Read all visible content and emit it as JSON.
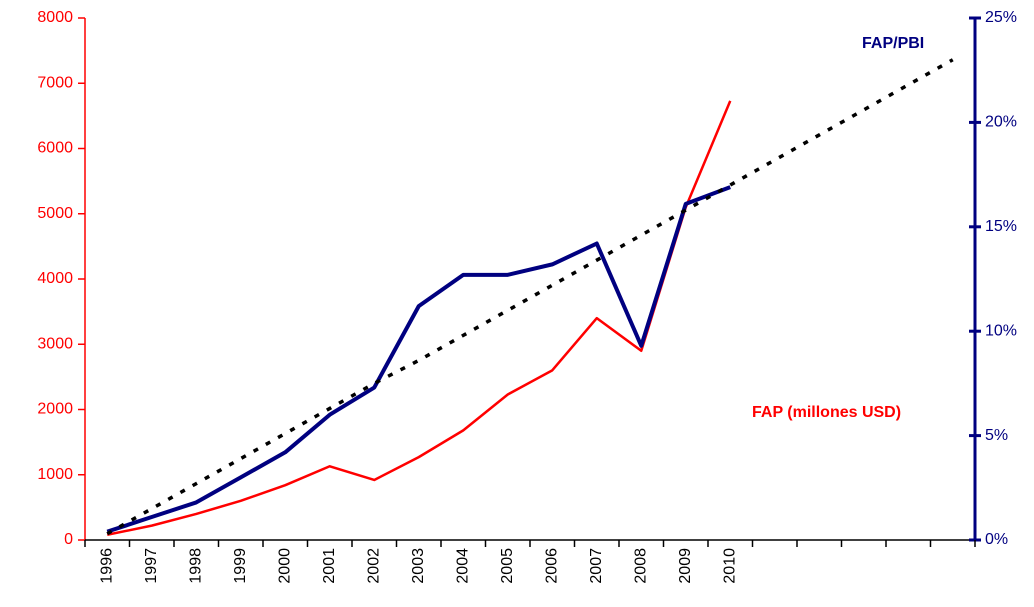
{
  "chart_data": {
    "type": "line",
    "categories": [
      "1996",
      "1997",
      "1998",
      "1999",
      "2000",
      "2001",
      "2002",
      "2003",
      "2004",
      "2005",
      "2006",
      "2007",
      "2008",
      "2009",
      "2010",
      null,
      null,
      null,
      null,
      null
    ],
    "series": [
      {
        "name": "FAP (millones  USD)",
        "color": "#ff0000",
        "axis": "y",
        "values": [
          80,
          220,
          400,
          600,
          840,
          1130,
          920,
          1270,
          1680,
          2230,
          2600,
          3400,
          2900,
          5100,
          6730,
          null,
          null,
          null,
          null,
          null
        ]
      },
      {
        "name": "FAP/PBI",
        "color": "#000080",
        "axis": "y2",
        "values": [
          0.4,
          1.1,
          1.8,
          3.0,
          4.2,
          6.0,
          7.3,
          11.2,
          12.7,
          12.7,
          13.2,
          14.2,
          9.3,
          16.1,
          16.9,
          null,
          null,
          null,
          null,
          null
        ]
      },
      {
        "color": "#000000",
        "axis": "y2",
        "dashed": true,
        "values": [
          0.3,
          1.5,
          2.7,
          3.9,
          5.1,
          6.3,
          7.5,
          8.6,
          9.8,
          11.0,
          12.2,
          13.4,
          14.6,
          15.8,
          17.0,
          18.2,
          19.4,
          20.6,
          21.8,
          23.0
        ]
      }
    ],
    "ylim": [
      0,
      8000
    ],
    "yticks": [
      0,
      1000,
      2000,
      3000,
      4000,
      5000,
      6000,
      7000,
      8000
    ],
    "y2lim": [
      0,
      25
    ],
    "y2ticks": [
      {
        "value": 0,
        "label": "0%"
      },
      {
        "value": 5,
        "label": "5%"
      },
      {
        "value": 10,
        "label": "10%"
      },
      {
        "value": 15,
        "label": "15%"
      },
      {
        "value": 20,
        "label": "20%"
      },
      {
        "value": 25,
        "label": "25%"
      }
    ],
    "grid": false
  }
}
